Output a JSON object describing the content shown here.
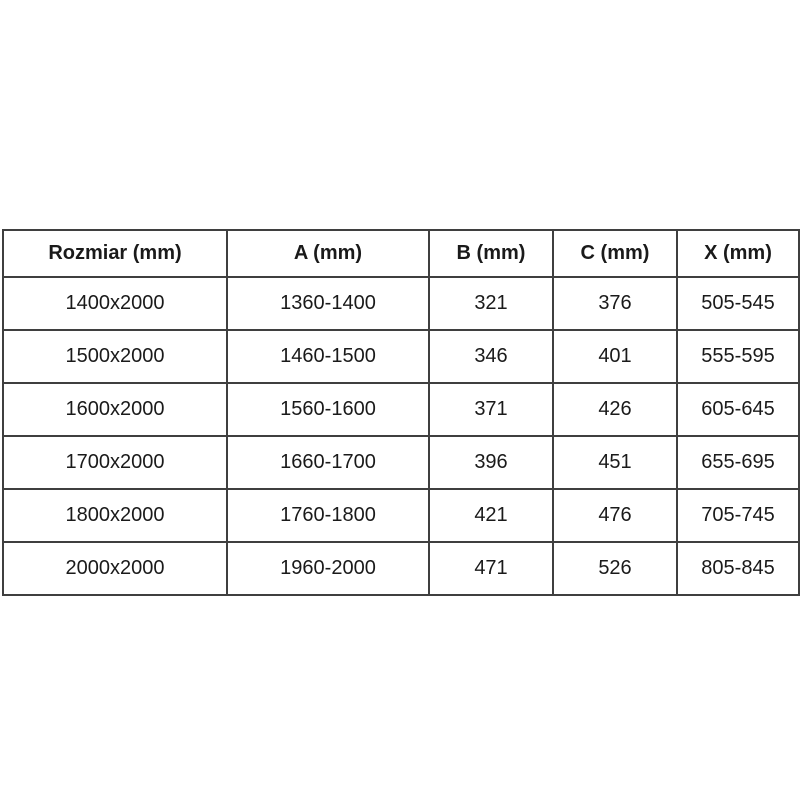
{
  "chart_data": {
    "type": "table",
    "columns": [
      "Rozmiar (mm)",
      "A (mm)",
      "B (mm)",
      "C (mm)",
      "X (mm)"
    ],
    "rows": [
      [
        "1400x2000",
        "1360-1400",
        "321",
        "376",
        "505-545"
      ],
      [
        "1500x2000",
        "1460-1500",
        "346",
        "401",
        "555-595"
      ],
      [
        "1600x2000",
        "1560-1600",
        "371",
        "426",
        "605-645"
      ],
      [
        "1700x2000",
        "1660-1700",
        "396",
        "451",
        "655-695"
      ],
      [
        "1800x2000",
        "1760-1800",
        "421",
        "476",
        "705-745"
      ],
      [
        "2000x2000",
        "1960-2000",
        "471",
        "526",
        "805-845"
      ]
    ],
    "layout": {
      "header_bold": true,
      "text_align": "center",
      "grid": "all-borders"
    },
    "colors": {
      "border": "#3f3f3f",
      "text": "#1a1a1a",
      "background": "#ffffff"
    }
  }
}
